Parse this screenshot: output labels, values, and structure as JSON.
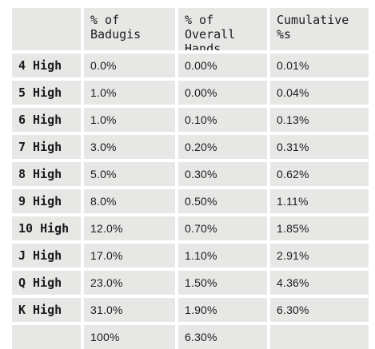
{
  "table": {
    "headers": [
      "",
      "% of Badugis",
      "% of Overall Hands",
      "Cumulative %s"
    ],
    "rows": [
      {
        "label": "4 High",
        "badugis": "0.0%",
        "overall": "0.00%",
        "cumulative": "0.01%"
      },
      {
        "label": "5 High",
        "badugis": "1.0%",
        "overall": "0.00%",
        "cumulative": "0.04%"
      },
      {
        "label": "6 High",
        "badugis": "1.0%",
        "overall": "0.10%",
        "cumulative": "0.13%"
      },
      {
        "label": "7 High",
        "badugis": "3.0%",
        "overall": "0.20%",
        "cumulative": "0.31%"
      },
      {
        "label": "8 High",
        "badugis": "5.0%",
        "overall": "0.30%",
        "cumulative": "0.62%"
      },
      {
        "label": "9 High",
        "badugis": "8.0%",
        "overall": "0.50%",
        "cumulative": "1.11%"
      },
      {
        "label": "10 High",
        "badugis": "12.0%",
        "overall": "0.70%",
        "cumulative": "1.85%"
      },
      {
        "label": "J High",
        "badugis": "17.0%",
        "overall": "1.10%",
        "cumulative": "2.91%"
      },
      {
        "label": "Q High",
        "badugis": "23.0%",
        "overall": "1.50%",
        "cumulative": "4.36%"
      },
      {
        "label": "K High",
        "badugis": "31.0%",
        "overall": "1.90%",
        "cumulative": "6.30%"
      }
    ],
    "totals": {
      "label": "",
      "badugis": "100%",
      "overall": "6.30%",
      "cumulative": ""
    }
  },
  "colors": {
    "cell_background": "#e7e8e6",
    "gridlines": "#ffffff",
    "text": "#1a1a1a"
  }
}
